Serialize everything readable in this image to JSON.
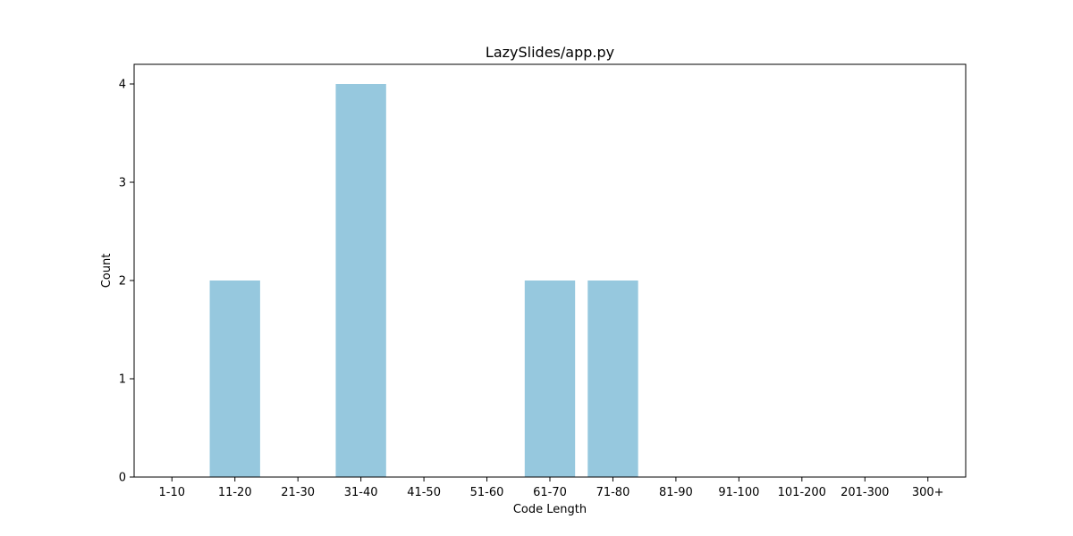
{
  "chart_data": {
    "type": "bar",
    "title": "LazySlides/app.py",
    "xlabel": "Code Length",
    "ylabel": "Count",
    "categories": [
      "1-10",
      "11-20",
      "21-30",
      "31-40",
      "41-50",
      "51-60",
      "61-70",
      "71-80",
      "81-90",
      "91-100",
      "101-200",
      "201-300",
      "300+"
    ],
    "values": [
      0,
      2,
      0,
      4,
      0,
      0,
      2,
      2,
      0,
      0,
      0,
      0,
      0
    ],
    "ylim": [
      0,
      4.2
    ],
    "yticks": [
      0,
      1,
      2,
      3,
      4
    ],
    "grid": false,
    "bar_color": "#96c8de"
  }
}
